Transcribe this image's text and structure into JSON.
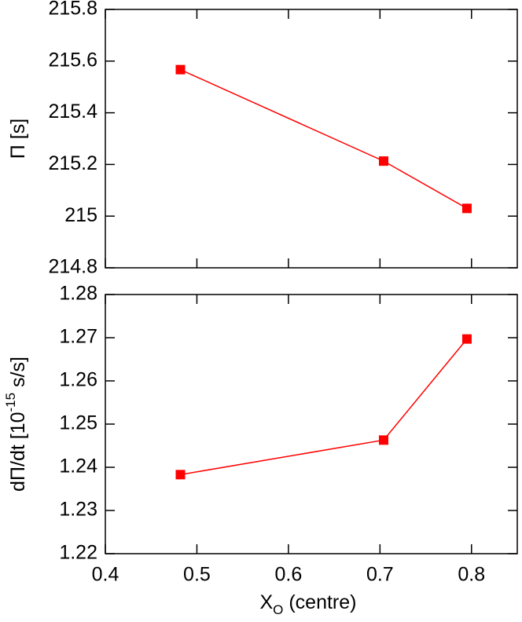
{
  "chart_data": [
    {
      "type": "line",
      "ylabel": [
        "Π  [s]"
      ],
      "x": [
        0.482,
        0.704,
        0.795
      ],
      "xlim": [
        0.4,
        0.85
      ],
      "xticks": [
        0.4,
        0.5,
        0.6,
        0.7,
        0.8
      ],
      "ylim": [
        214.8,
        215.8
      ],
      "yticks": [
        214.8,
        215,
        215.2,
        215.4,
        215.6,
        215.8
      ],
      "series": [
        {
          "color": "#ff0000",
          "values": [
            215.567,
            215.213,
            215.03
          ]
        }
      ]
    },
    {
      "type": "line",
      "ylabel": [
        "dΠ/dt  [10",
        "-15",
        " s/s]"
      ],
      "xlabel": [
        "X",
        "O",
        " (centre)"
      ],
      "x": [
        0.482,
        0.704,
        0.795
      ],
      "xlim": [
        0.4,
        0.85
      ],
      "xticks": [
        0.4,
        0.5,
        0.6,
        0.7,
        0.8
      ],
      "ylim": [
        1.22,
        1.28
      ],
      "yticks": [
        1.22,
        1.23,
        1.24,
        1.25,
        1.26,
        1.27,
        1.28
      ],
      "series": [
        {
          "color": "#ff0000",
          "values": [
            1.2383,
            1.2463,
            1.2697
          ]
        }
      ]
    }
  ]
}
